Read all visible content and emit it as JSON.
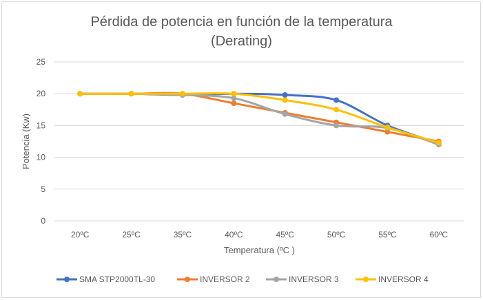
{
  "chart_data": {
    "type": "line",
    "title_line1": "Pérdida de potencia en función de la temperatura",
    "title_line2": "(Derating)",
    "xlabel": "Temperatura (ºC )",
    "ylabel": "Potencia (Kw)",
    "categories": [
      "20ºC",
      "25ºC",
      "35ºC",
      "40ºC",
      "45ºC",
      "50ºC",
      "55ºC",
      "60ºC"
    ],
    "ylim": [
      0,
      25
    ],
    "yticks": [
      0,
      5,
      10,
      15,
      20,
      25
    ],
    "grid": true,
    "smooth": true,
    "legend": "bottom",
    "series": [
      {
        "name": "SMA  STP2000TL-30",
        "color": "#4472c4",
        "values": [
          20,
          20,
          19.8,
          20,
          19.8,
          19,
          15,
          12.2
        ]
      },
      {
        "name": "INVERSOR 2",
        "color": "#ed7d31",
        "values": [
          20,
          20,
          20,
          18.5,
          17,
          15.5,
          14,
          12.5
        ]
      },
      {
        "name": "INVERSOR 3",
        "color": "#a5a5a5",
        "values": [
          20,
          20,
          19.8,
          19.3,
          16.8,
          15,
          14.6,
          12
        ]
      },
      {
        "name": "INVERSOR 4",
        "color": "#ffc000",
        "values": [
          20,
          20,
          20,
          20,
          19,
          17.5,
          14.7,
          12.3
        ]
      }
    ]
  }
}
